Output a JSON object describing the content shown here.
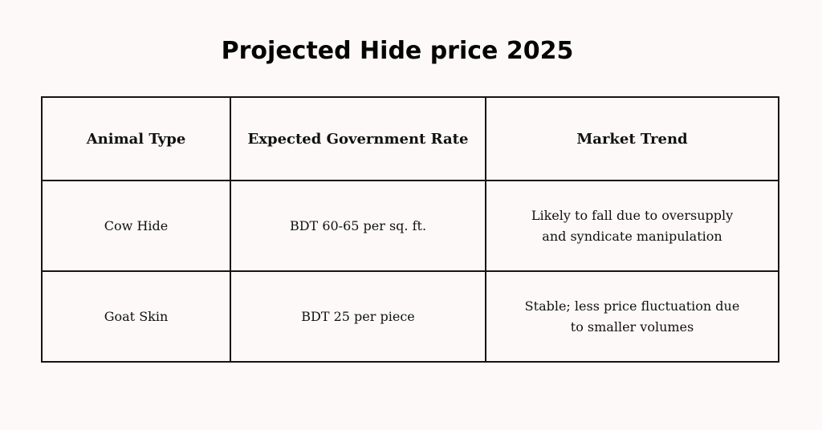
{
  "title": "Projected Hide price 2025",
  "table": {
    "headers": [
      "Animal Type",
      "Expected Government Rate",
      "Market Trend"
    ],
    "rows": [
      {
        "animal_type": "Cow Hide",
        "rate": "BDT 60-65 per sq. ft.",
        "trend_line1": "Likely to fall due to oversupply",
        "trend_line2": "and syndicate manipulation"
      },
      {
        "animal_type": "Goat Skin",
        "rate": "BDT 25 per piece",
        "trend_line1": "Stable; less price fluctuation due",
        "trend_line2": "to smaller volumes"
      }
    ]
  }
}
